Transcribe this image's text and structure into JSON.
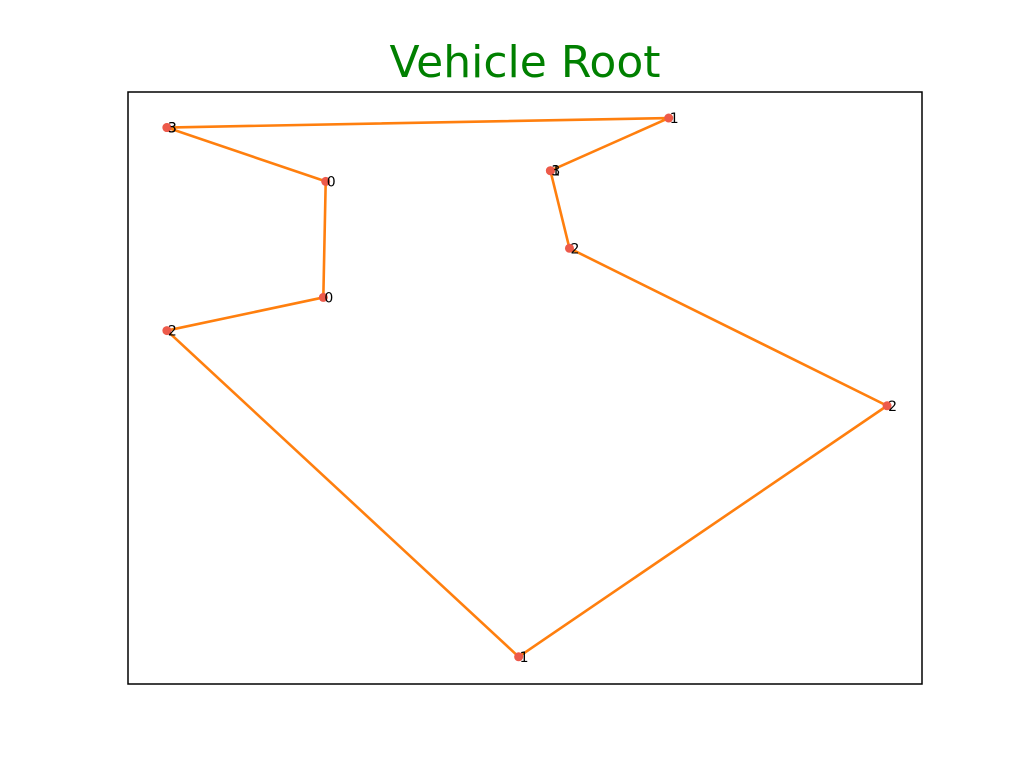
{
  "chart_data": {
    "type": "line",
    "title": "Vehicle Root",
    "title_color": "#008000",
    "line_color": "#ff7f0e",
    "marker_color": "#ed5a4a",
    "frame_color": "#000000",
    "xlim": [
      0,
      100
    ],
    "ylim": [
      0,
      100
    ],
    "grid": false,
    "axis_ticks": false,
    "points": [
      {
        "x": 4.9,
        "y": 94.0,
        "label": "3"
      },
      {
        "x": 24.9,
        "y": 84.9,
        "label": "0"
      },
      {
        "x": 24.6,
        "y": 65.3,
        "label": "0"
      },
      {
        "x": 4.9,
        "y": 59.7,
        "label": "2"
      },
      {
        "x": 49.2,
        "y": 4.6,
        "label": "1"
      },
      {
        "x": 95.6,
        "y": 47.0,
        "label": "2"
      },
      {
        "x": 55.6,
        "y": 73.6,
        "label": "2"
      },
      {
        "x": 53.2,
        "y": 86.7,
        "label": "1"
      },
      {
        "x": 53.2,
        "y": 86.7,
        "label": "3"
      },
      {
        "x": 68.1,
        "y": 95.6,
        "label": "1"
      },
      {
        "x": 4.9,
        "y": 94.0,
        "label": "3"
      }
    ]
  }
}
